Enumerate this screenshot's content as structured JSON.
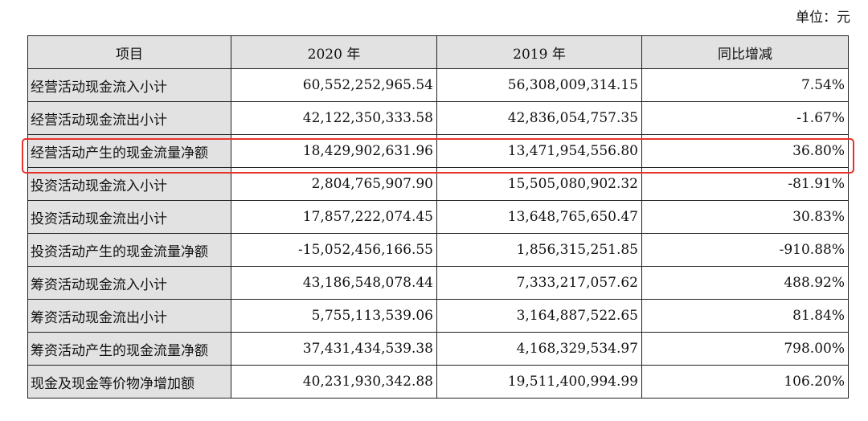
{
  "unit_label": "单位：元",
  "table": {
    "headers": [
      "项目",
      "2020 年",
      "2019 年",
      "同比增减"
    ],
    "rows": [
      {
        "item": "经营活动现金流入小计",
        "y2020": "60,552,252,965.54",
        "y2019": "56,308,009,314.15",
        "yoy": "7.54%"
      },
      {
        "item": "经营活动现金流出小计",
        "y2020": "42,122,350,333.58",
        "y2019": "42,836,054,757.35",
        "yoy": "-1.67%"
      },
      {
        "item": "经营活动产生的现金流量净额",
        "y2020": "18,429,902,631.96",
        "y2019": "13,471,954,556.80",
        "yoy": "36.80%"
      },
      {
        "item": "投资活动现金流入小计",
        "y2020": "2,804,765,907.90",
        "y2019": "15,505,080,902.32",
        "yoy": "-81.91%"
      },
      {
        "item": "投资活动现金流出小计",
        "y2020": "17,857,222,074.45",
        "y2019": "13,648,765,650.47",
        "yoy": "30.83%"
      },
      {
        "item": "投资活动产生的现金流量净额",
        "y2020": "-15,052,456,166.55",
        "y2019": "1,856,315,251.85",
        "yoy": "-910.88%"
      },
      {
        "item": "筹资活动现金流入小计",
        "y2020": "43,186,548,078.44",
        "y2019": "7,333,217,057.62",
        "yoy": "488.92%"
      },
      {
        "item": "筹资活动现金流出小计",
        "y2020": "5,755,113,539.06",
        "y2019": "3,164,887,522.65",
        "yoy": "81.84%"
      },
      {
        "item": "筹资活动产生的现金流量净额",
        "y2020": "37,431,434,539.38",
        "y2019": "4,168,329,534.97",
        "yoy": "798.00%"
      },
      {
        "item": "现金及现金等价物净增加额",
        "y2020": "40,231,930,342.88",
        "y2019": "19,511,400,994.99",
        "yoy": "106.20%"
      }
    ]
  },
  "highlight_color": "#e8322c"
}
